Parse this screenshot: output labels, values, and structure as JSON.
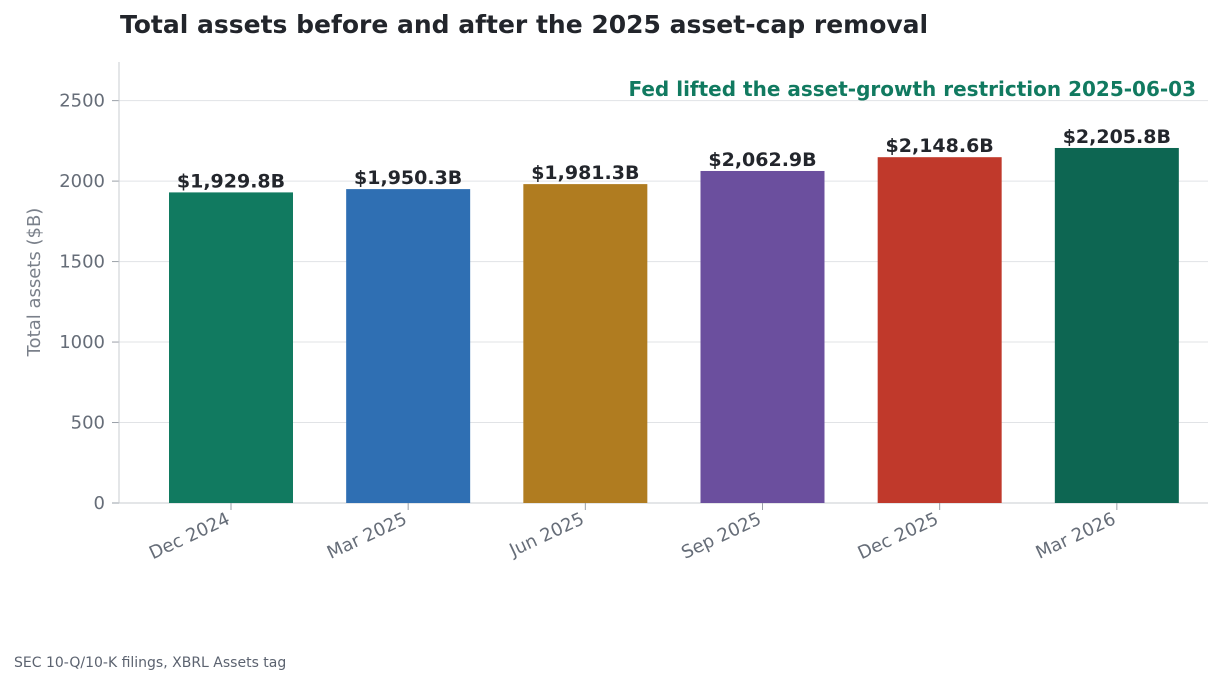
{
  "chart_data": {
    "type": "bar",
    "title": "Total assets before and after the 2025 asset-cap removal",
    "ylabel": "Total assets ($B)",
    "xlabel": "",
    "categories": [
      "Dec 2024",
      "Mar 2025",
      "Jun 2025",
      "Sep 2025",
      "Dec 2025",
      "Mar 2026"
    ],
    "values": [
      1929.8,
      1950.3,
      1981.3,
      2062.9,
      2148.6,
      2205.8
    ],
    "data_labels": [
      "$1,929.8B",
      "$1,950.3B",
      "$1,981.3B",
      "$2,062.9B",
      "$2,148.6B",
      "$2,205.8B"
    ],
    "bar_colors": [
      "#117a60",
      "#2f6fb3",
      "#b07c20",
      "#6b4f9e",
      "#c0392b",
      "#0d6652"
    ],
    "ylim": [
      0,
      2740
    ],
    "yticks": [
      0,
      500,
      1000,
      1500,
      2000,
      2500
    ],
    "grid": "horizontal",
    "annotation": {
      "text": "Fed lifted the asset-growth restriction 2025-06-03",
      "color": "#117a60"
    },
    "source": "SEC 10-Q/10-K filings, XBRL Assets tag"
  }
}
